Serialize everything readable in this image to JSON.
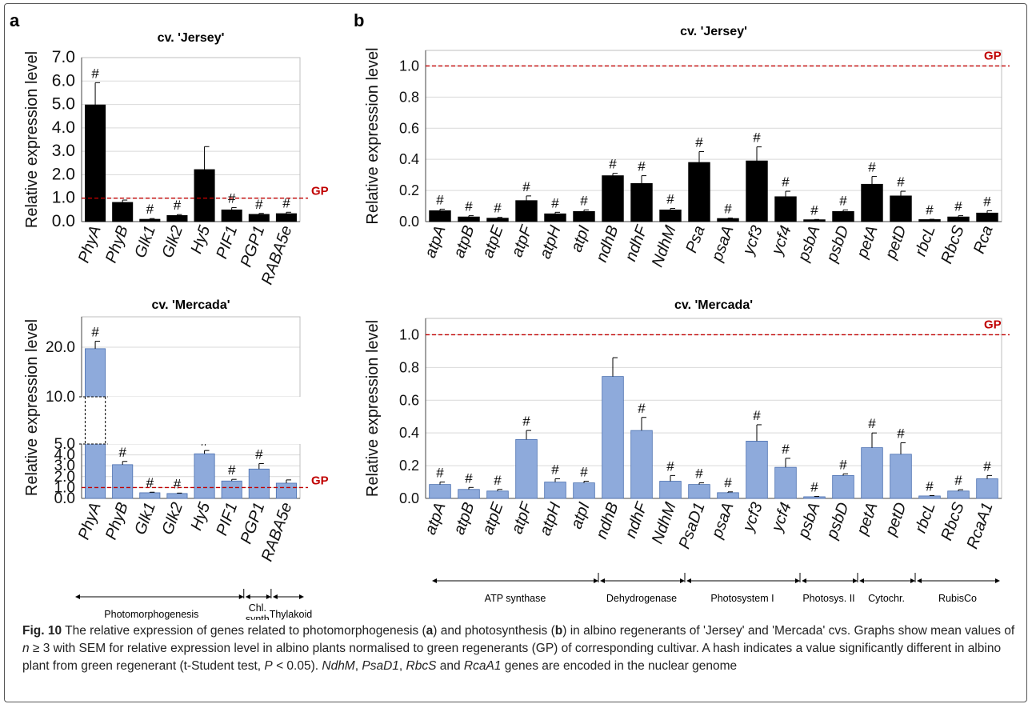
{
  "figure": {
    "label": "Fig. 10",
    "gp_label": "GP",
    "ylabel": "Relative expression level",
    "sig_mark": "#",
    "caption": {
      "s1": "The relative expression of genes related to photomorphogenesis (",
      "a": "a",
      "s2": ") and photosynthesis (",
      "b": "b",
      "s3": ") in albino regenerants of 'Jersey' and 'Mercada' cvs. Graphs show mean values of ",
      "n": "n",
      "s4": " ≥ 3 with SEM for relative expression level in albino plants normalised to green regenerants (GP) of corresponding cultivar. A hash indicates a value significantly different in albino plant from green regenerant (t-Student test, ",
      "p": "P",
      "s5": " < 0.05). ",
      "g1": "NdhM",
      "s6": ", ",
      "g2": "PsaD1",
      "s7": ", ",
      "g3": "RbcS",
      "s8": " and ",
      "g4": "RcaA1",
      "s9": " genes are encoded in the nuclear genome"
    }
  },
  "chart_data": [
    {
      "panel": "a",
      "title": "cv. 'Jersey'",
      "type": "bar",
      "color": "#000000",
      "categories": [
        "PhyA",
        "PhyB",
        "Glk1",
        "Glk2",
        "Hy5",
        "PIF1",
        "PGP1",
        "RABA5e"
      ],
      "values": [
        4.98,
        0.82,
        0.1,
        0.26,
        2.22,
        0.5,
        0.31,
        0.34
      ],
      "errors": [
        0.95,
        0.1,
        0.03,
        0.04,
        0.98,
        0.1,
        0.04,
        0.06
      ],
      "significant": [
        true,
        false,
        true,
        true,
        false,
        true,
        true,
        true
      ],
      "ylim": [
        0,
        7
      ],
      "ytick_labels": [
        "0.0",
        "1.0",
        "2.0",
        "3.0",
        "4.0",
        "5.0",
        "6.0",
        "7.0"
      ],
      "reference": 1.0
    },
    {
      "panel": "b",
      "title": "cv. 'Jersey'",
      "type": "bar",
      "color": "#000000",
      "categories": [
        "atpA",
        "atpB",
        "atpE",
        "atpF",
        "atpH",
        "atpI",
        "ndhB",
        "ndhF",
        "NdhM",
        "Psa",
        "psaA",
        "ycf3",
        "ycf4",
        "psbA",
        "psbD",
        "petA",
        "petD",
        "rbcL",
        "RbcS",
        "Rca"
      ],
      "values": [
        0.07,
        0.03,
        0.022,
        0.135,
        0.05,
        0.065,
        0.295,
        0.245,
        0.075,
        0.38,
        0.02,
        0.39,
        0.16,
        0.012,
        0.065,
        0.24,
        0.165,
        0.013,
        0.03,
        0.055
      ],
      "errors": [
        0.01,
        0.008,
        0.005,
        0.03,
        0.01,
        0.01,
        0.015,
        0.05,
        0.01,
        0.07,
        0.003,
        0.09,
        0.035,
        0.002,
        0.01,
        0.05,
        0.03,
        0.002,
        0.008,
        0.015
      ],
      "significant": [
        true,
        true,
        true,
        true,
        true,
        true,
        true,
        true,
        true,
        true,
        true,
        true,
        true,
        true,
        true,
        true,
        true,
        true,
        true,
        true
      ],
      "ylim": [
        0,
        1.1
      ],
      "ytick_labels": [
        "0.0",
        "0.2",
        "0.4",
        "0.6",
        "0.8",
        "1.0"
      ],
      "reference": 1.0
    },
    {
      "panel": "a",
      "title": "cv. 'Mercada'",
      "type": "bar",
      "color": "#8eaadb",
      "categories": [
        "PhyA",
        "PhyB",
        "Glk1",
        "Glk2",
        "Hy5",
        "PIF1",
        "PGP1",
        "RABA5e"
      ],
      "values": [
        19.7,
        3.1,
        0.52,
        0.45,
        4.1,
        1.6,
        2.7,
        1.4
      ],
      "errors": [
        1.5,
        0.3,
        0.05,
        0.04,
        0.3,
        0.15,
        0.5,
        0.3
      ],
      "significant": [
        true,
        true,
        true,
        true,
        true,
        true,
        true,
        false
      ],
      "axis_break": [
        5,
        10
      ],
      "ytick_labels": [
        "0.0",
        "1.0",
        "2.0",
        "3.0",
        "4.0",
        "5.0",
        "10.0",
        "20.0"
      ],
      "reference": 1.0
    },
    {
      "panel": "b",
      "title": "cv. 'Mercada'",
      "type": "bar",
      "color": "#8eaadb",
      "categories": [
        "atpA",
        "atpB",
        "atpE",
        "atpF",
        "atpH",
        "atpI",
        "ndhB",
        "ndhF",
        "NdhM",
        "PsaD1",
        "psaA",
        "ycf3",
        "ycf4",
        "psbA",
        "psbD",
        "petA",
        "petD",
        "rbcL",
        "RbcS",
        "RcaA1"
      ],
      "values": [
        0.085,
        0.055,
        0.045,
        0.36,
        0.1,
        0.095,
        0.745,
        0.415,
        0.105,
        0.085,
        0.035,
        0.35,
        0.19,
        0.01,
        0.14,
        0.31,
        0.27,
        0.015,
        0.045,
        0.12
      ],
      "errors": [
        0.015,
        0.012,
        0.01,
        0.055,
        0.02,
        0.01,
        0.115,
        0.08,
        0.035,
        0.01,
        0.005,
        0.1,
        0.055,
        0.002,
        0.01,
        0.09,
        0.07,
        0.002,
        0.008,
        0.02
      ],
      "significant": [
        true,
        true,
        true,
        true,
        true,
        true,
        false,
        true,
        true,
        true,
        true,
        true,
        true,
        true,
        true,
        true,
        true,
        true,
        true,
        true
      ],
      "ylim": [
        0,
        1.1
      ],
      "ytick_labels": [
        "0.0",
        "0.2",
        "0.4",
        "0.6",
        "0.8",
        "1.0"
      ],
      "reference": 1.0
    }
  ],
  "group_labels": {
    "a": [
      "Photomorphogenesis",
      "Chl.\nsynth",
      "Thylakoid"
    ],
    "b": [
      "ATP synthase",
      "Dehydrogenase",
      "Photosystem I",
      "Photosys. II",
      "Cytochr.",
      "RubisCo"
    ]
  }
}
